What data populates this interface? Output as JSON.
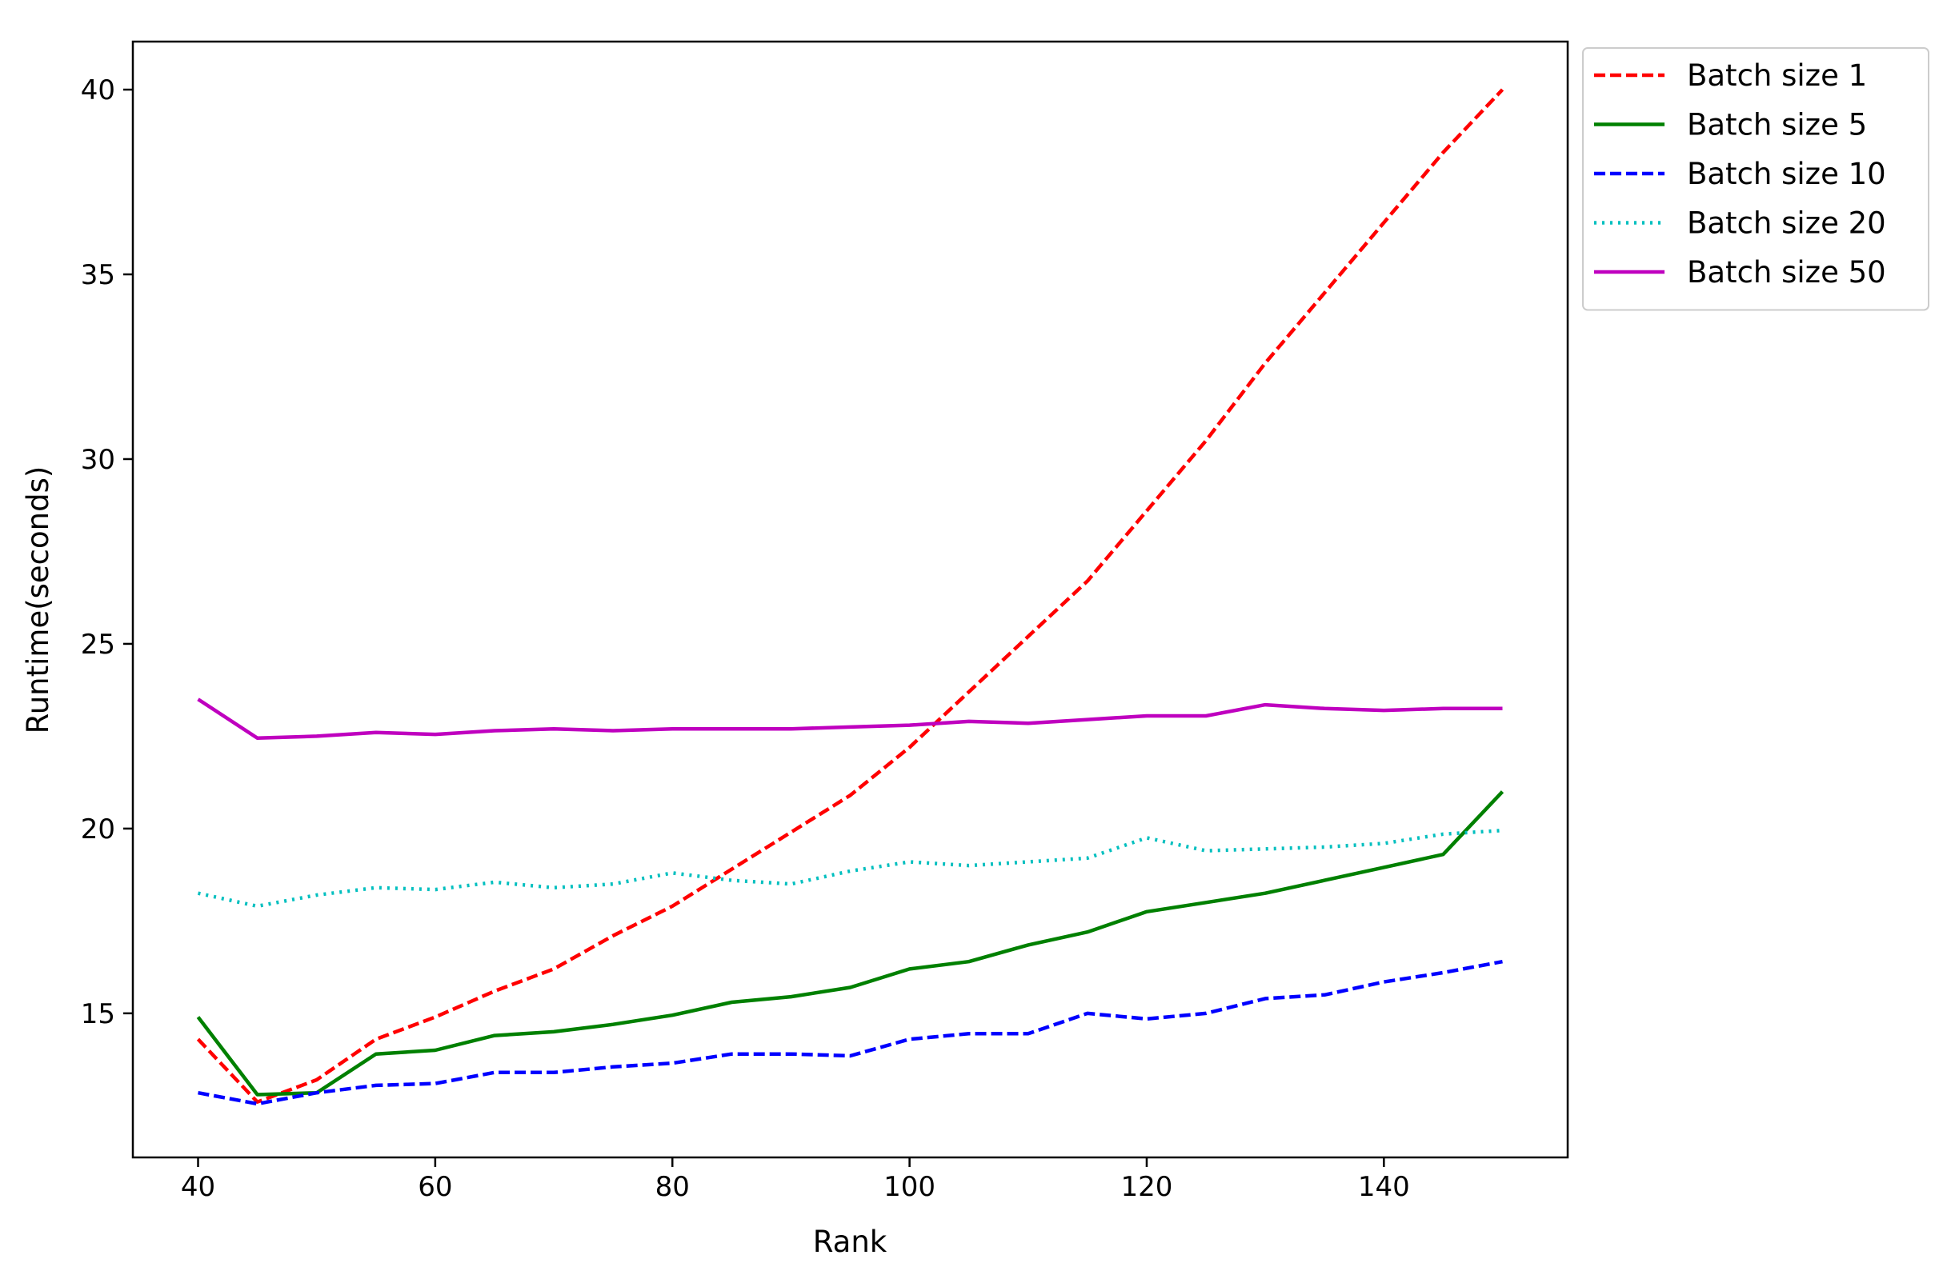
{
  "chart_data": {
    "type": "line",
    "title": "",
    "xlabel": "Rank",
    "ylabel": "Runtime(seconds)",
    "xlim": [
      34.5,
      155.5
    ],
    "ylim": [
      11.1,
      41.3
    ],
    "xticks": [
      40,
      60,
      80,
      100,
      120,
      140
    ],
    "yticks": [
      15,
      20,
      25,
      30,
      35,
      40
    ],
    "grid": false,
    "legend_position": "outside top-right",
    "x": [
      40,
      45,
      50,
      55,
      60,
      65,
      70,
      75,
      80,
      85,
      90,
      95,
      100,
      105,
      110,
      115,
      120,
      125,
      130,
      135,
      140,
      145,
      150
    ],
    "series": [
      {
        "name": "Batch size 1",
        "color": "#ff0000",
        "style": "dashed",
        "values": [
          14.3,
          12.6,
          13.2,
          14.3,
          14.9,
          15.6,
          16.2,
          17.1,
          17.9,
          18.9,
          19.9,
          20.9,
          22.2,
          23.7,
          25.2,
          26.7,
          28.6,
          30.5,
          32.6,
          34.5,
          36.4,
          38.3,
          40.0
        ]
      },
      {
        "name": "Batch size 5",
        "color": "#008000",
        "style": "solid",
        "values": [
          14.9,
          12.8,
          12.85,
          13.9,
          14.0,
          14.4,
          14.5,
          14.7,
          14.95,
          15.3,
          15.45,
          15.7,
          16.2,
          16.4,
          16.85,
          17.2,
          17.75,
          18.0,
          18.25,
          18.6,
          18.95,
          19.3,
          21.0
        ]
      },
      {
        "name": "Batch size 10",
        "color": "#0000ff",
        "style": "dashed",
        "values": [
          12.85,
          12.55,
          12.85,
          13.05,
          13.1,
          13.4,
          13.4,
          13.55,
          13.65,
          13.9,
          13.9,
          13.85,
          14.3,
          14.45,
          14.45,
          15.0,
          14.85,
          15.0,
          15.4,
          15.5,
          15.85,
          16.1,
          16.4
        ]
      },
      {
        "name": "Batch size 20",
        "color": "#00bfbf",
        "style": "dotted",
        "values": [
          18.25,
          17.9,
          18.2,
          18.4,
          18.35,
          18.55,
          18.4,
          18.5,
          18.8,
          18.6,
          18.5,
          18.85,
          19.1,
          19.0,
          19.1,
          19.2,
          19.75,
          19.4,
          19.45,
          19.5,
          19.6,
          19.85,
          19.95
        ]
      },
      {
        "name": "Batch size 50",
        "color": "#bf00bf",
        "style": "solid",
        "values": [
          23.5,
          22.45,
          22.5,
          22.6,
          22.55,
          22.65,
          22.7,
          22.65,
          22.7,
          22.7,
          22.7,
          22.75,
          22.8,
          22.9,
          22.85,
          22.95,
          23.05,
          23.05,
          23.35,
          23.25,
          23.2,
          23.25,
          23.25
        ]
      }
    ]
  }
}
